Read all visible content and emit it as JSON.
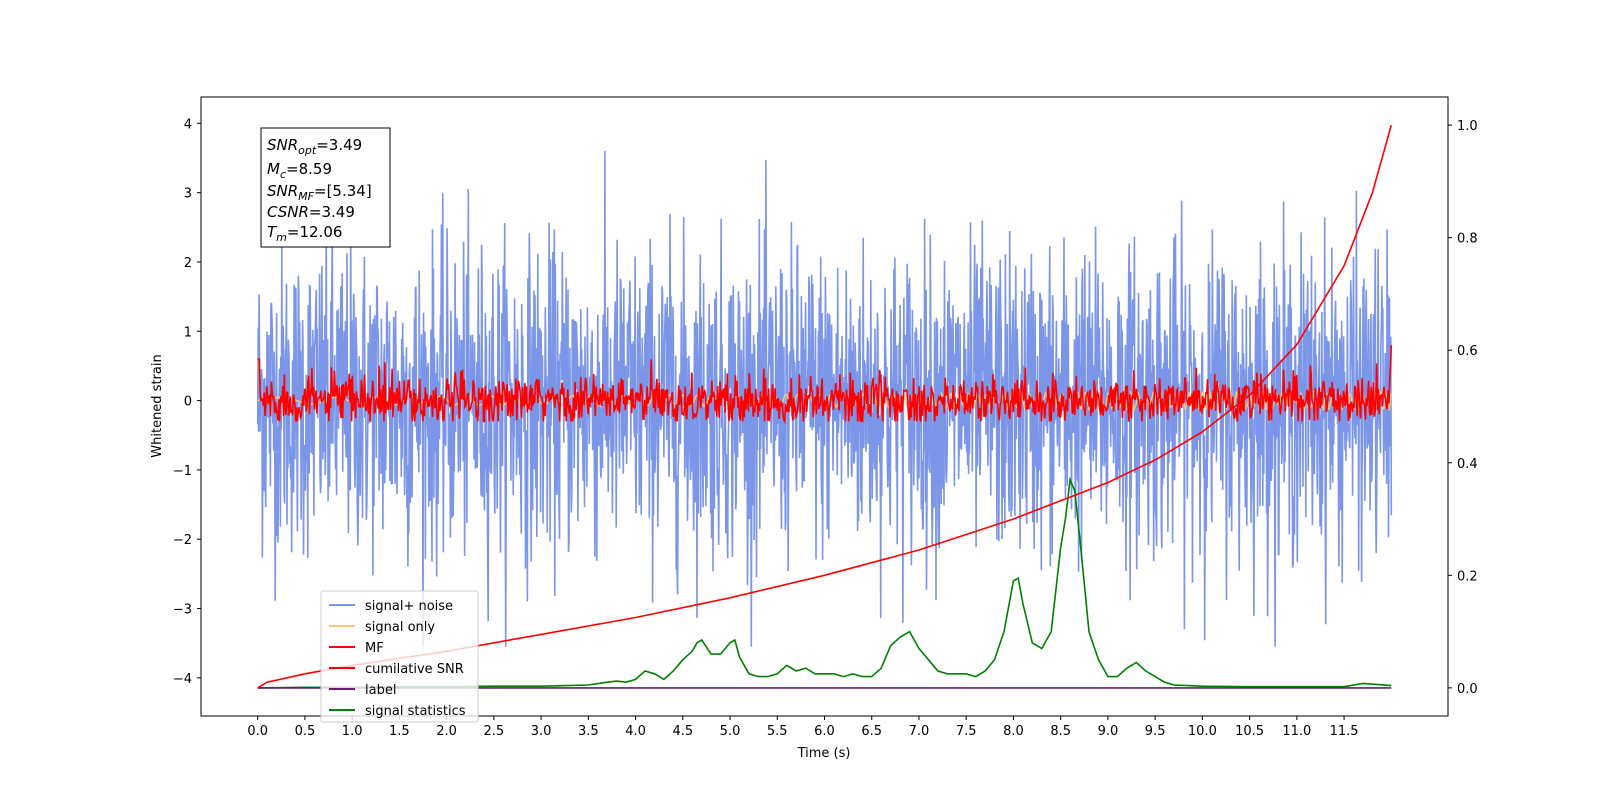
{
  "chart_data": {
    "type": "line",
    "title": "",
    "xlabel": "Time (s)",
    "ylabel": "Whitened strain",
    "xlim": [
      -0.6,
      12.6
    ],
    "ylim": [
      -4.55,
      4.38
    ],
    "y2lim": [
      -0.05,
      1.05
    ],
    "grid": false,
    "legend_position": "lower-left",
    "x_ticks": [
      "0.0",
      "0.5",
      "1.0",
      "1.5",
      "2.0",
      "2.5",
      "3.0",
      "3.5",
      "4.0",
      "4.5",
      "5.0",
      "5.5",
      "6.0",
      "6.5",
      "7.0",
      "7.5",
      "8.0",
      "8.5",
      "9.0",
      "9.5",
      "10.0",
      "10.5",
      "11.0",
      "11.5"
    ],
    "y_ticks": [
      "4",
      "3",
      "2",
      "1",
      "0",
      "−1",
      "−2",
      "−3",
      "−4"
    ],
    "y2_ticks": [
      "0.0",
      "0.2",
      "0.4",
      "0.6",
      "0.8",
      "1.0"
    ],
    "stats_box": {
      "snr_opt": {
        "base": "SNR",
        "sub": "opt",
        "value": "=3.49"
      },
      "mc": {
        "base": "M",
        "sub": "c",
        "value": "=8.59"
      },
      "snr_mf": {
        "base": "SNR",
        "sub": "MF",
        "value": "=[5.34]"
      },
      "csnr": {
        "base": "CSNR",
        "sub": "",
        "value": "=3.49"
      },
      "tm": {
        "base": "T",
        "sub": "m",
        "value": "=12.06"
      }
    },
    "series": [
      {
        "name": "signal+ noise",
        "color": "#7b96e8",
        "axis": "left",
        "description_values": {
          "x_range": [
            0,
            12.0
          ],
          "mean": 0.0,
          "std": 1.1,
          "min": -3.55,
          "max": 3.97
        }
      },
      {
        "name": "signal only",
        "color": "#f5c87a",
        "axis": "left",
        "values_note_range": [
          -0.15,
          0.15
        ]
      },
      {
        "name": "MF",
        "color": "#ff0000",
        "axis": "left",
        "description_values": {
          "x_range": [
            0,
            12.0
          ],
          "mean": 0.0,
          "std": 0.18,
          "min": -0.3,
          "max": 0.96
        }
      },
      {
        "name": "cumilative SNR",
        "color": "#ff0000",
        "axis": "right",
        "x": [
          0.0,
          0.1,
          0.5,
          1.0,
          2.0,
          3.0,
          4.0,
          5.0,
          6.0,
          7.0,
          8.0,
          9.0,
          9.5,
          10.0,
          10.5,
          11.0,
          11.5,
          11.8,
          12.0
        ],
        "y": [
          0.0,
          0.01,
          0.025,
          0.04,
          0.065,
          0.095,
          0.125,
          0.16,
          0.2,
          0.245,
          0.3,
          0.365,
          0.405,
          0.455,
          0.52,
          0.61,
          0.75,
          0.88,
          1.0
        ]
      },
      {
        "name": "label",
        "color": "#6a1b6e",
        "axis": "right",
        "x": [
          0.0,
          12.0
        ],
        "y": [
          0.0,
          0.0
        ]
      },
      {
        "name": "signal statistics",
        "color": "#008000",
        "axis": "right",
        "x": [
          0.0,
          0.5,
          1.0,
          1.5,
          2.0,
          2.5,
          3.0,
          3.5,
          3.7,
          3.8,
          3.9,
          4.0,
          4.1,
          4.2,
          4.3,
          4.4,
          4.5,
          4.6,
          4.65,
          4.7,
          4.8,
          4.9,
          5.0,
          5.05,
          5.1,
          5.2,
          5.3,
          5.4,
          5.5,
          5.6,
          5.7,
          5.8,
          5.9,
          6.0,
          6.1,
          6.2,
          6.3,
          6.4,
          6.5,
          6.6,
          6.7,
          6.8,
          6.9,
          7.0,
          7.1,
          7.2,
          7.3,
          7.4,
          7.5,
          7.6,
          7.7,
          7.8,
          7.9,
          8.0,
          8.05,
          8.1,
          8.2,
          8.3,
          8.4,
          8.5,
          8.55,
          8.6,
          8.65,
          8.7,
          8.8,
          8.9,
          9.0,
          9.1,
          9.2,
          9.3,
          9.4,
          9.5,
          9.6,
          9.7,
          10.0,
          10.5,
          11.0,
          11.5,
          11.7,
          12.0
        ],
        "y": [
          0.0,
          0.001,
          0.001,
          0.002,
          0.002,
          0.003,
          0.003,
          0.005,
          0.01,
          0.012,
          0.01,
          0.015,
          0.03,
          0.025,
          0.015,
          0.03,
          0.05,
          0.065,
          0.08,
          0.085,
          0.06,
          0.06,
          0.08,
          0.085,
          0.055,
          0.025,
          0.02,
          0.02,
          0.025,
          0.04,
          0.03,
          0.035,
          0.025,
          0.025,
          0.025,
          0.02,
          0.025,
          0.02,
          0.02,
          0.035,
          0.075,
          0.09,
          0.1,
          0.07,
          0.05,
          0.03,
          0.025,
          0.025,
          0.025,
          0.02,
          0.03,
          0.05,
          0.1,
          0.19,
          0.195,
          0.15,
          0.08,
          0.07,
          0.1,
          0.25,
          0.3,
          0.37,
          0.35,
          0.27,
          0.1,
          0.05,
          0.02,
          0.02,
          0.035,
          0.045,
          0.03,
          0.02,
          0.01,
          0.005,
          0.003,
          0.002,
          0.002,
          0.002,
          0.008,
          0.004
        ]
      }
    ]
  }
}
